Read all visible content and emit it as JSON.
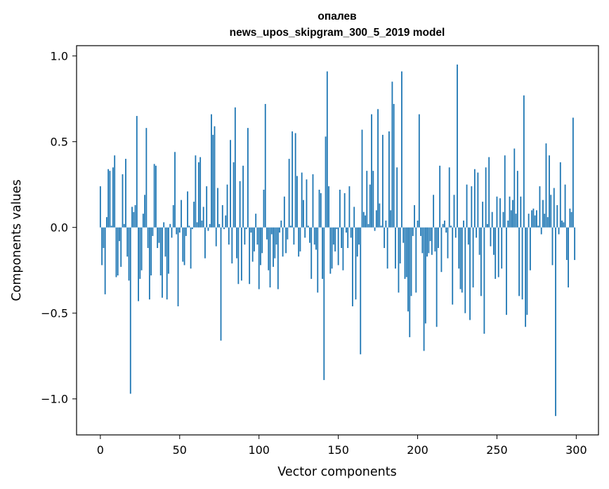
{
  "chart_data": {
    "type": "bar",
    "title": "опалев",
    "subtitle": "news_upos_skipgram_300_5_2019 model",
    "xlabel": "Vector components",
    "ylabel": "Components values",
    "xlim": [
      -15,
      314
    ],
    "ylim": [
      -1.21,
      1.06
    ],
    "xticks": [
      0,
      50,
      100,
      150,
      200,
      250,
      300
    ],
    "yticks": [
      1.0,
      0.5,
      0.0,
      -0.5,
      -1.0
    ],
    "ytick_labels": [
      "1.0",
      "0.5",
      "0.0",
      "−0.5",
      "−1.0"
    ],
    "grid": false,
    "legend": "none",
    "bar_color": "#1f77b4",
    "x_start": 0,
    "values": [
      0.24,
      -0.22,
      -0.12,
      -0.39,
      0.06,
      0.34,
      0.33,
      0.01,
      0.35,
      0.42,
      -0.29,
      -0.28,
      -0.08,
      -0.23,
      0.31,
      0.02,
      0.4,
      -0.17,
      -0.31,
      -0.97,
      0.12,
      0.09,
      0.13,
      0.65,
      -0.43,
      -0.3,
      -0.25,
      0.08,
      0.19,
      0.58,
      -0.12,
      -0.42,
      -0.28,
      -0.05,
      0.37,
      0.36,
      -0.12,
      -0.09,
      -0.28,
      -0.41,
      0.03,
      -0.17,
      -0.42,
      -0.27,
      0.02,
      -0.06,
      0.13,
      0.44,
      -0.04,
      -0.46,
      -0.03,
      0.16,
      -0.2,
      -0.22,
      -0.05,
      0.21,
      0.01,
      -0.24,
      -0.01,
      0.15,
      0.42,
      0.03,
      0.38,
      0.41,
      0.04,
      0.12,
      -0.18,
      0.24,
      -0.02,
      0.02,
      0.66,
      0.54,
      0.59,
      -0.11,
      0.23,
      0.02,
      -0.66,
      0.13,
      -0.01,
      0.07,
      0.25,
      -0.1,
      0.51,
      -0.21,
      0.38,
      0.7,
      -0.18,
      -0.33,
      0.27,
      -0.31,
      0.36,
      -0.1,
      -0.01,
      0.58,
      -0.33,
      -0.03,
      -0.2,
      -0.14,
      0.08,
      -0.1,
      -0.36,
      -0.22,
      -0.15,
      0.22,
      0.72,
      -0.07,
      -0.25,
      -0.35,
      -0.04,
      -0.23,
      -0.18,
      -0.1,
      -0.36,
      -0.03,
      0.04,
      -0.17,
      0.18,
      -0.15,
      -0.07,
      0.4,
      0.01,
      0.56,
      -0.1,
      0.55,
      0.3,
      -0.17,
      -0.14,
      0.32,
      0.16,
      -0.06,
      0.28,
      0.01,
      -0.09,
      -0.3,
      0.31,
      -0.1,
      -0.13,
      -0.38,
      0.22,
      0.2,
      -0.3,
      -0.89,
      0.53,
      0.91,
      0.24,
      -0.27,
      -0.24,
      -0.1,
      -0.14,
      -0.01,
      -0.22,
      0.22,
      -0.12,
      -0.25,
      0.2,
      -0.03,
      -0.12,
      0.24,
      -0.06,
      -0.46,
      0.12,
      -0.42,
      -0.17,
      -0.1,
      -0.74,
      0.57,
      0.09,
      0.07,
      0.33,
      0.02,
      0.25,
      0.66,
      0.33,
      -0.02,
      0.1,
      0.69,
      0.14,
      0.01,
      0.54,
      -0.12,
      0.04,
      -0.24,
      0.56,
      0.1,
      0.85,
      0.72,
      -0.24,
      0.35,
      -0.38,
      -0.21,
      0.91,
      -0.09,
      -0.3,
      -0.29,
      -0.49,
      -0.64,
      -0.4,
      -0.05,
      0.13,
      -0.38,
      0.04,
      0.66,
      -0.05,
      -0.15,
      -0.72,
      -0.56,
      -0.17,
      -0.15,
      -0.08,
      -0.16,
      0.19,
      -0.14,
      -0.58,
      -0.12,
      0.36,
      -0.26,
      0.02,
      0.04,
      -0.03,
      -0.18,
      0.35,
      0.01,
      -0.45,
      0.19,
      -0.06,
      0.95,
      -0.24,
      -0.36,
      -0.38,
      0.04,
      -0.5,
      0.25,
      -0.1,
      -0.54,
      0.24,
      -0.35,
      0.34,
      -0.06,
      0.32,
      -0.16,
      -0.4,
      0.15,
      -0.62,
      0.35,
      0.02,
      0.41,
      -0.11,
      0.09,
      -0.16,
      -0.3,
      0.18,
      -0.29,
      0.17,
      -0.24,
      0.09,
      0.42,
      -0.51,
      0.04,
      0.18,
      0.1,
      0.16,
      0.46,
      0.08,
      0.33,
      -0.4,
      0.18,
      -0.42,
      0.77,
      -0.58,
      -0.51,
      0.08,
      -0.25,
      0.1,
      0.11,
      0.07,
      0.1,
      0.01,
      0.24,
      -0.04,
      0.16,
      0.08,
      0.49,
      0.06,
      0.42,
      0.19,
      -0.22,
      0.23,
      -1.1,
      0.13,
      -0.04,
      0.38,
      0.04,
      0.03,
      0.25,
      -0.19,
      -0.35,
      0.11,
      0.09,
      0.64,
      -0.19
    ]
  }
}
